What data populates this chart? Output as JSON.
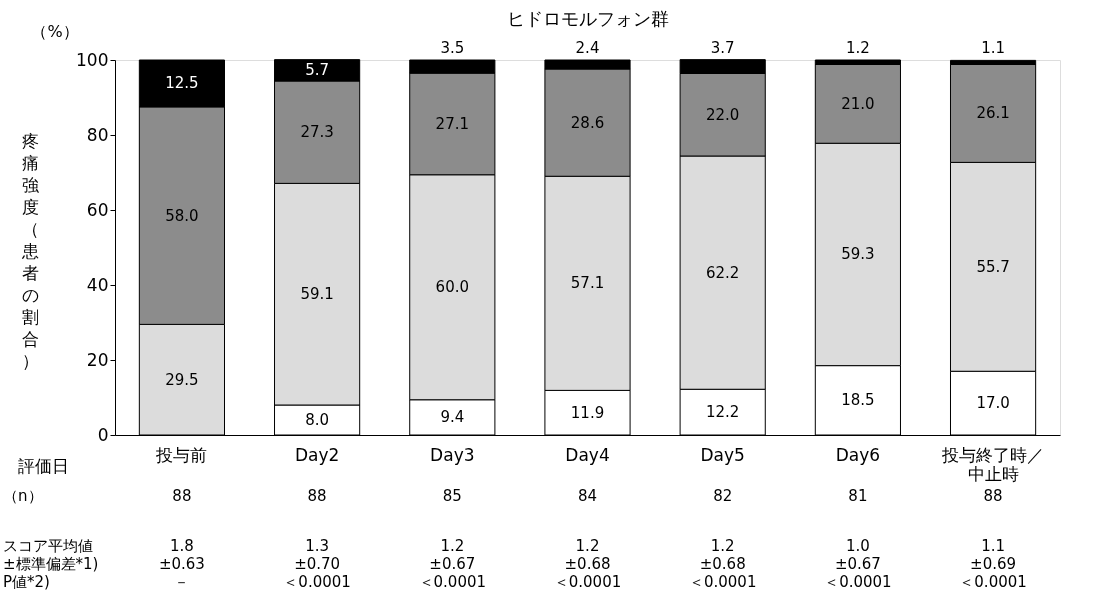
{
  "chart_data": {
    "type": "bar",
    "stacked": true,
    "title": "ヒドロモルフォン群",
    "xlabel": "評価日",
    "ylabel": "疼痛強度（患者の割合）",
    "categories": [
      "投与前",
      "Day2",
      "Day3",
      "Day4",
      "Day5",
      "Day6",
      "投与終了時／中止時"
    ],
    "series": [
      {
        "color": "#ffffff",
        "values": [
          null,
          8.0,
          9.4,
          11.9,
          12.2,
          18.5,
          17.0
        ],
        "value_labels": [
          null,
          "8.0",
          "9.4",
          "11.9",
          "12.2",
          "18.5",
          "17.0"
        ]
      },
      {
        "color": "#dcdcdc",
        "values": [
          29.5,
          59.1,
          60.0,
          57.1,
          62.2,
          59.3,
          55.7
        ],
        "value_labels": [
          "29.5",
          "59.1",
          "60.0",
          "57.1",
          "62.2",
          "59.3",
          "55.7"
        ]
      },
      {
        "color": "#8c8c8c",
        "values": [
          58.0,
          27.3,
          27.1,
          28.6,
          22.0,
          21.0,
          26.1
        ],
        "value_labels": [
          "58.0",
          "27.3",
          "27.1",
          "28.6",
          "22.0",
          "21.0",
          "26.1"
        ]
      },
      {
        "color": "#000000",
        "values": [
          12.5,
          5.7,
          3.5,
          2.4,
          3.7,
          1.2,
          1.1
        ],
        "value_labels": [
          "12.5",
          "5.7",
          "3.5",
          "2.4",
          "3.7",
          "1.2",
          "1.1"
        ]
      }
    ],
    "ylim": [
      0,
      100
    ],
    "yticks": [
      0,
      20,
      40,
      60,
      80,
      100
    ],
    "grid": false,
    "annotations": [
      "（%）",
      "（n）",
      "88",
      "88",
      "85",
      "84",
      "82",
      "81",
      "88",
      "スコア平均値",
      "1.8",
      "1.3",
      "1.2",
      "1.2",
      "1.2",
      "1.0",
      "1.1",
      "±標準偏差*1)",
      "±0.63",
      "±0.70",
      "±0.67",
      "±0.68",
      "±0.68",
      "±0.67",
      "±0.69",
      "P値*2)",
      "－",
      "＜0.0001",
      "＜0.0001",
      "＜0.0001",
      "＜0.0001",
      "＜0.0001",
      "＜0.0001"
    ]
  }
}
